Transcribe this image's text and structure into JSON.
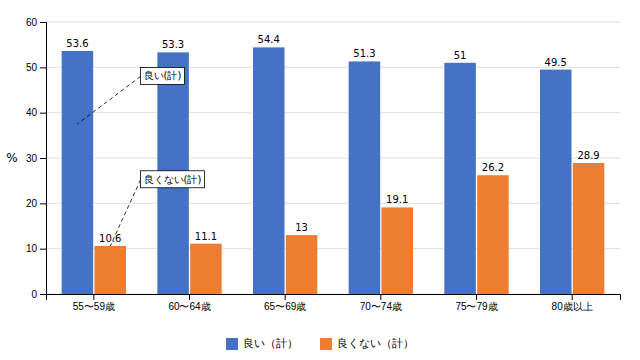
{
  "chart_data": {
    "type": "bar",
    "categories": [
      "55〜59歳",
      "60〜64歳",
      "65〜69歳",
      "70〜74歳",
      "75〜79歳",
      "80歳以上"
    ],
    "series": [
      {
        "name": "良い（計）",
        "color": "#4472C4",
        "values": [
          53.6,
          53.3,
          54.4,
          51.3,
          51,
          49.5
        ]
      },
      {
        "name": "良くない（計）",
        "color": "#ED7D31",
        "values": [
          10.6,
          11.1,
          13,
          19.1,
          26.2,
          28.9
        ]
      }
    ],
    "y_label": "%",
    "ylim": [
      0,
      60
    ],
    "yticks": [
      0,
      10,
      20,
      30,
      40,
      50,
      60
    ],
    "grid": true,
    "legend": "bottom",
    "data_labels": true,
    "annotations": [
      "良い(計)",
      "良くない(計)"
    ]
  }
}
